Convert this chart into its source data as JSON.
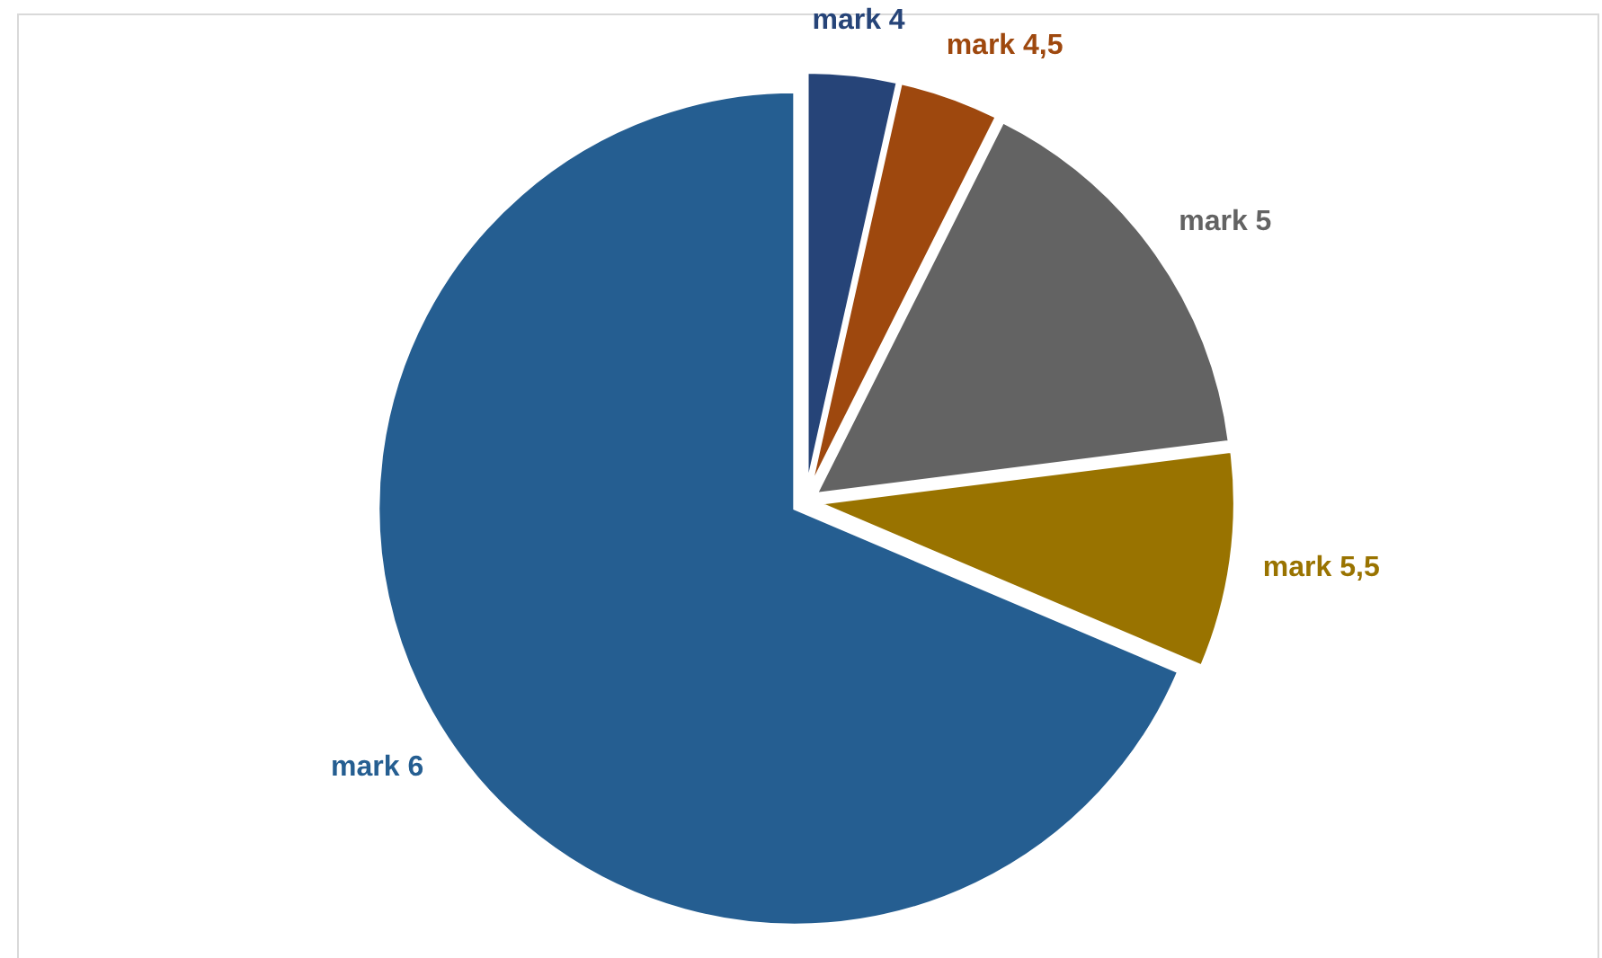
{
  "chart_data": {
    "type": "pie",
    "categories": [
      "mark 4",
      "mark 4,5",
      "mark 5",
      "mark 5,5",
      "mark 6"
    ],
    "values": [
      3.5,
      3.9,
      15.6,
      8.4,
      68.6
    ],
    "colors": [
      "#264478",
      "#9e480e",
      "#636363",
      "#997300",
      "#255e91"
    ]
  }
}
